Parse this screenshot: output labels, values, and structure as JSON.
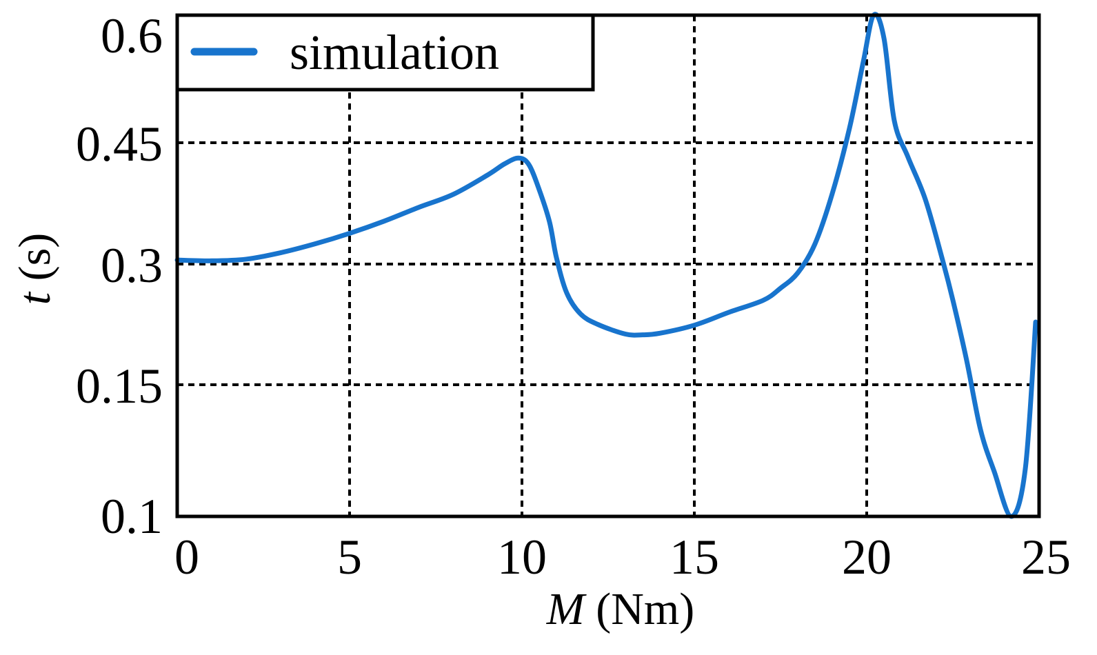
{
  "chart_data": {
    "type": "line",
    "title": "",
    "xlabel": {
      "var": "M",
      "unit": " (Nm)"
    },
    "ylabel": {
      "var": "t",
      "unit": " (s)"
    },
    "xlim": [
      0,
      25
    ],
    "ylim": [
      0.1,
      0.6
    ],
    "xticks": [
      0,
      5,
      10,
      15,
      20,
      25
    ],
    "xtick_labels": [
      "0",
      "5",
      "10",
      "15",
      "20",
      "25"
    ],
    "yticks": [
      0.1,
      0.15,
      0.3,
      0.45,
      0.6
    ],
    "ytick_labels": [
      "0.1",
      "0.15",
      "0.3",
      "0.45",
      "0.6"
    ],
    "y_scale": "piecewise: tick labels 0.1, 0.15, 0.3, 0.45, 0.6 evenly spaced",
    "grid": true,
    "legend": {
      "position": "top-left",
      "entries": [
        "simulation"
      ]
    },
    "series": [
      {
        "name": "simulation",
        "color": "#1874CD",
        "x": [
          0,
          1,
          2,
          3,
          4,
          5,
          6,
          7,
          8,
          9,
          9.5,
          9.9,
          10.2,
          10.5,
          10.8,
          11,
          11.3,
          11.7,
          12.2,
          13,
          13.5,
          14,
          15,
          16,
          17,
          17.5,
          18,
          18.5,
          19,
          19.5,
          19.9,
          20.2,
          20.5,
          20.8,
          21.2,
          21.7,
          22.2,
          22.5,
          22.9,
          23.3,
          23.7,
          24.2,
          24.6,
          24.9
        ],
        "y": [
          0.305,
          0.304,
          0.306,
          0.314,
          0.325,
          0.338,
          0.353,
          0.37,
          0.386,
          0.41,
          0.424,
          0.431,
          0.423,
          0.392,
          0.352,
          0.308,
          0.264,
          0.238,
          0.225,
          0.213,
          0.212,
          0.214,
          0.224,
          0.24,
          0.255,
          0.27,
          0.289,
          0.325,
          0.387,
          0.467,
          0.545,
          0.603,
          0.573,
          0.476,
          0.432,
          0.38,
          0.305,
          0.255,
          0.18,
          0.133,
          0.117,
          0.1,
          0.118,
          0.228
        ]
      }
    ]
  }
}
